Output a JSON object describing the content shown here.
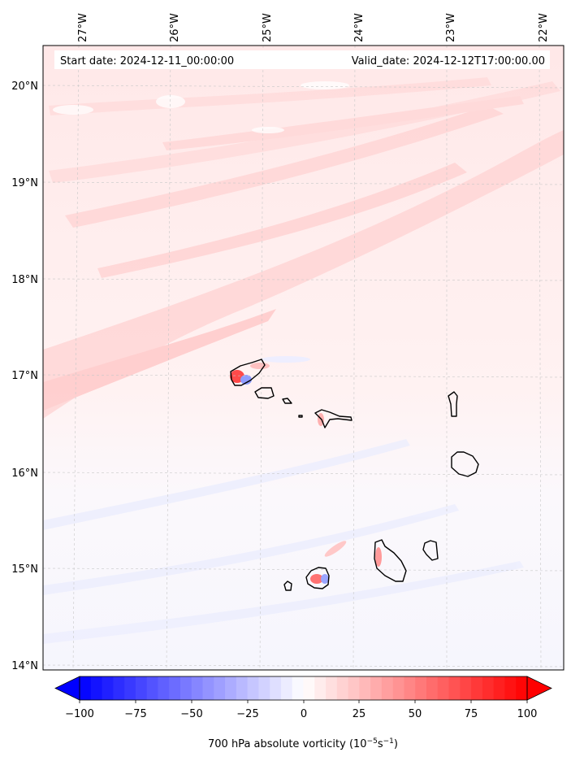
{
  "map": {
    "start_label": "Start date: 2024-12-11_00:00:00",
    "valid_label": "Valid_date: 2024-12-12T17:00:00.00",
    "lon_ticks": [
      "27°W",
      "26°W",
      "25°W",
      "24°W",
      "23°W",
      "22°W"
    ],
    "lat_ticks": [
      "20°N",
      "19°N",
      "18°N",
      "17°N",
      "16°N",
      "15°N",
      "14°N"
    ],
    "gridlines": true,
    "islands": [
      "Santo Antão",
      "São Vicente",
      "Santa Luzia",
      "Branco",
      "São Nicolau",
      "Sal",
      "Boa Vista",
      "Maio",
      "Santiago",
      "Fogo",
      "Brava"
    ]
  },
  "colorbar": {
    "label": "700 hPa absolute vorticity (10",
    "label_exp1": "−5",
    "label_mid": "s",
    "label_exp2": "−1",
    "label_end": ")",
    "ticks": [
      "−100",
      "−75",
      "−50",
      "−25",
      "0",
      "25",
      "50",
      "75",
      "100"
    ],
    "min": -100,
    "max": 100,
    "extend": "both",
    "colormap": "bwr",
    "colors": {
      "low": "#0000ff",
      "mid": "#ffffff",
      "high": "#ff0000"
    }
  }
}
